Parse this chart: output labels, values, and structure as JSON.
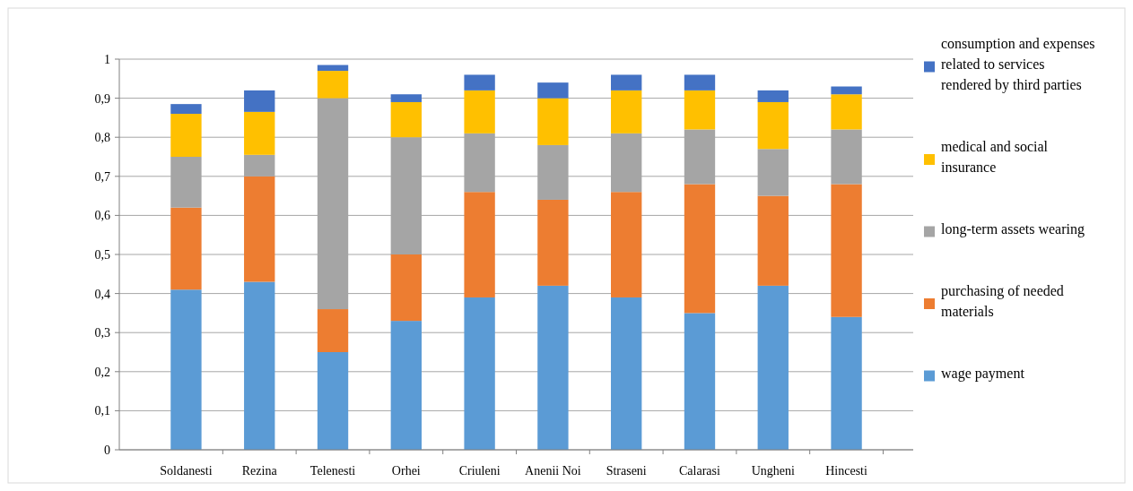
{
  "chart_data": {
    "type": "bar",
    "stacked": true,
    "categories": [
      "Soldanesti",
      "Rezina",
      "Telenesti",
      "Orhei",
      "Criuleni",
      "Anenii Noi",
      "Straseni",
      "Calarasi",
      "Ungheni",
      "Hincesti"
    ],
    "series": [
      {
        "name": "wage payment",
        "color": "#5b9bd5",
        "values": [
          0.41,
          0.43,
          0.25,
          0.33,
          0.39,
          0.42,
          0.39,
          0.35,
          0.42,
          0.34
        ]
      },
      {
        "name": "purchasing of needed materials",
        "color": "#ed7d31",
        "values": [
          0.21,
          0.27,
          0.11,
          0.17,
          0.27,
          0.22,
          0.27,
          0.33,
          0.23,
          0.34
        ]
      },
      {
        "name": "long-term assets wearing",
        "color": "#a5a5a5",
        "values": [
          0.13,
          0.055,
          0.54,
          0.3,
          0.15,
          0.14,
          0.15,
          0.14,
          0.12,
          0.14
        ]
      },
      {
        "name": "medical and social insurance",
        "color": "#ffc000",
        "values": [
          0.11,
          0.11,
          0.07,
          0.09,
          0.11,
          0.12,
          0.11,
          0.1,
          0.12,
          0.09
        ]
      },
      {
        "name": "consumption and expenses related to services rendered by third parties",
        "color": "#4472c4",
        "values": [
          0.025,
          0.055,
          0.015,
          0.02,
          0.04,
          0.04,
          0.04,
          0.04,
          0.03,
          0.02
        ]
      }
    ],
    "ylim": [
      0,
      1
    ],
    "yticks": [
      0,
      {
        "value": 0.1,
        "label": "0,1"
      },
      {
        "value": 0.2,
        "label": "0,2"
      },
      {
        "value": 0.3,
        "label": "0,3"
      },
      {
        "value": 0.4,
        "label": "0,4"
      },
      {
        "value": 0.5,
        "label": "0,5"
      },
      {
        "value": 0.6,
        "label": "0,6"
      },
      {
        "value": 0.7,
        "label": "0,7"
      },
      {
        "value": 0.8,
        "label": "0,8"
      },
      {
        "value": 0.9,
        "label": "0,9"
      },
      1
    ],
    "grid": "y",
    "legend": "right"
  }
}
